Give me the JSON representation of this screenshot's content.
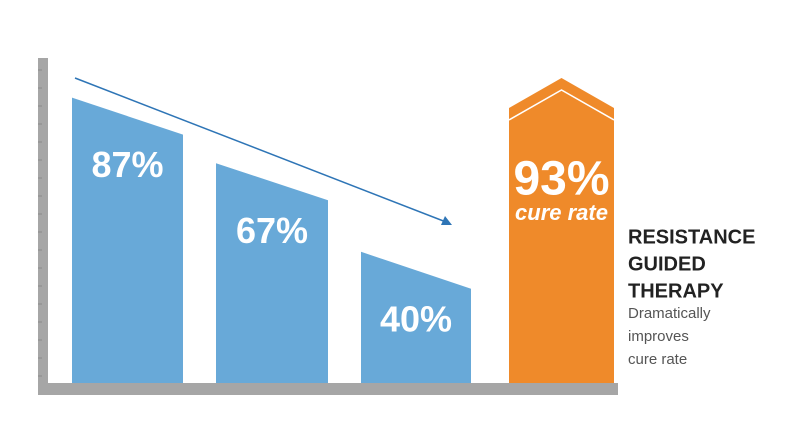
{
  "chart_data": {
    "type": "bar",
    "values": [
      87,
      67,
      40,
      93
    ],
    "value_labels": [
      "87%",
      "67%",
      "40%",
      "93%"
    ],
    "colors": [
      "#68a9d8",
      "#68a9d8",
      "#68a9d8",
      "#ef8a2a"
    ],
    "ylim": [
      0,
      100
    ],
    "highlight_label": "cure rate",
    "callout": {
      "title_lines": [
        "RESISTANCE",
        "GUIDED",
        "THERAPY"
      ],
      "body_lines": [
        "Dramatically",
        "improves",
        "cure rate"
      ]
    }
  }
}
